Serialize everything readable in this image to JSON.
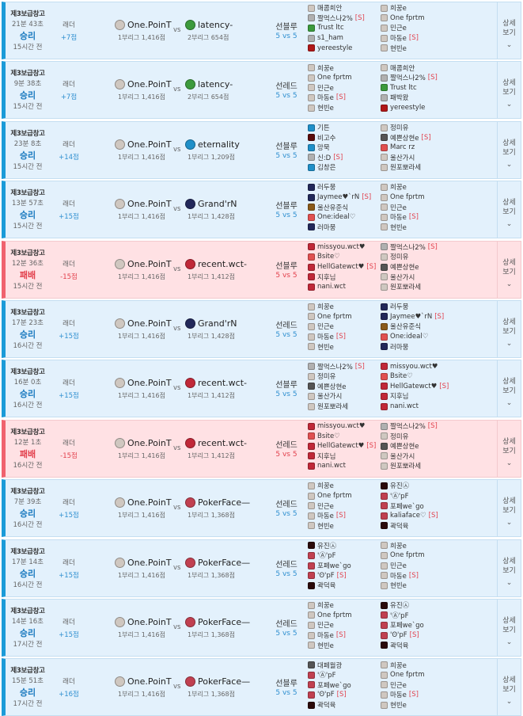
{
  "labels": {
    "ladder": "래더",
    "vs": "vs",
    "details": "상세\n보기",
    "chevron": "⌄",
    "s_tag": "[S]"
  },
  "icon_colors": {
    "pointer": "#cfc7c0",
    "grey": "#b0b0b0",
    "green": "#3c9a3c",
    "redshield": "#b01818",
    "blue": "#1f8fc8",
    "darkred": "#5a0a0a",
    "navy": "#22285a",
    "brown": "#8a5a1a",
    "wct": "#c02838",
    "pink": "#e05050",
    "poker": "#c04050",
    "black": "#2a0a0a",
    "dark": "#555"
  },
  "matches": [
    {
      "mode": "제3보급창고",
      "duration": "21분 43초",
      "result": "승리",
      "win": true,
      "ago": "15시간 전",
      "points": "+7점",
      "team1": {
        "name": "One.PoinT",
        "sub": "1부리그 1,416점",
        "icon": "pointer"
      },
      "team2": {
        "name": "latency-",
        "sub": "2부리그 654점",
        "icon": "green"
      },
      "side": "선블루",
      "count": "5 vs 5",
      "blue": [
        {
          "n": "매콤희안",
          "i": "pointer"
        },
        {
          "n": "짤먹스나2%",
          "i": "grey",
          "s": true
        },
        {
          "n": "Trust ltc",
          "i": "green"
        },
        {
          "n": "s1_ham",
          "i": "grey"
        },
        {
          "n": "yereestyle",
          "i": "redshield"
        }
      ],
      "red": [
        {
          "n": "희꿍e",
          "i": "pointer"
        },
        {
          "n": "One fprtm",
          "i": "pointer"
        },
        {
          "n": "민근e",
          "i": "pointer"
        },
        {
          "n": "마동e",
          "i": "pointer",
          "s": true
        },
        {
          "n": "현빈e",
          "i": "pointer"
        }
      ]
    },
    {
      "mode": "제3보급창고",
      "duration": "9분 38초",
      "result": "승리",
      "win": true,
      "ago": "15시간 전",
      "points": "+7점",
      "team1": {
        "name": "One.PoinT",
        "sub": "1부리그 1,416점",
        "icon": "pointer"
      },
      "team2": {
        "name": "latency-",
        "sub": "2부리그 654점",
        "icon": "green"
      },
      "side": "선레드",
      "count": "5 vs 5",
      "blue": [
        {
          "n": "희꿍e",
          "i": "pointer"
        },
        {
          "n": "One fprtm",
          "i": "pointer"
        },
        {
          "n": "민근e",
          "i": "pointer"
        },
        {
          "n": "마동e",
          "i": "pointer",
          "s": true
        },
        {
          "n": "현빈e",
          "i": "pointer"
        }
      ],
      "red": [
        {
          "n": "매콤희안",
          "i": "pointer"
        },
        {
          "n": "짤먹스나2%",
          "i": "grey",
          "s": true
        },
        {
          "n": "Trust ltc",
          "i": "green"
        },
        {
          "n": "패박왔",
          "i": "grey"
        },
        {
          "n": "yereestyle",
          "i": "redshield"
        }
      ]
    },
    {
      "mode": "제3보급창고",
      "duration": "23분 8초",
      "result": "승리",
      "win": true,
      "ago": "15시간 전",
      "points": "+14점",
      "team1": {
        "name": "One.PoinT",
        "sub": "1부리그 1,416점",
        "icon": "pointer"
      },
      "team2": {
        "name": "eternality",
        "sub": "1부리그 1,209점",
        "icon": "blue"
      },
      "side": "선블루",
      "count": "5 vs 5",
      "blue": [
        {
          "n": "기튼",
          "i": "blue"
        },
        {
          "n": "비고수",
          "i": "darkred"
        },
        {
          "n": "망묵",
          "i": "blue"
        },
        {
          "n": "신:D",
          "i": "grey",
          "s": true
        },
        {
          "n": "김창은",
          "i": "blue"
        }
      ],
      "red": [
        {
          "n": "정미유",
          "i": "pointer"
        },
        {
          "n": "예쁜상현e",
          "i": "dark",
          "s": true
        },
        {
          "n": "Marc rz",
          "i": "pink"
        },
        {
          "n": "울산가시",
          "i": "pointer"
        },
        {
          "n": "원포뽀라세",
          "i": "pointer"
        }
      ]
    },
    {
      "mode": "제3보급창고",
      "duration": "13분 57초",
      "result": "승리",
      "win": true,
      "ago": "15시간 전",
      "points": "+15점",
      "team1": {
        "name": "One.PoinT",
        "sub": "1부리그 1,416점",
        "icon": "pointer"
      },
      "team2": {
        "name": "Grand'rN",
        "sub": "1부리그 1,428점",
        "icon": "navy"
      },
      "side": "선블루",
      "count": "5 vs 5",
      "blue": [
        {
          "n": "러두뭉",
          "i": "navy"
        },
        {
          "n": "Jaymee♥`rN",
          "i": "navy",
          "s": true
        },
        {
          "n": "울산유준식",
          "i": "brown"
        },
        {
          "n": "One:ideal♡",
          "i": "pink"
        },
        {
          "n": "러마뭉",
          "i": "navy"
        }
      ],
      "red": [
        {
          "n": "희꿍e",
          "i": "pointer"
        },
        {
          "n": "One fprtm",
          "i": "pointer"
        },
        {
          "n": "민근e",
          "i": "pointer"
        },
        {
          "n": "마동e",
          "i": "pointer",
          "s": true
        },
        {
          "n": "현빈e",
          "i": "pointer"
        }
      ]
    },
    {
      "mode": "제3보급창고",
      "duration": "12분 36초",
      "result": "패배",
      "win": false,
      "ago": "15시간 전",
      "points": "-15점",
      "team1": {
        "name": "One.PoinT",
        "sub": "1부리그 1,416점",
        "icon": "pointer"
      },
      "team2": {
        "name": "recent.wct-",
        "sub": "1부리그 1,412점",
        "icon": "wct"
      },
      "side": "선블루",
      "count": "5 vs 5",
      "blue": [
        {
          "n": "missyou.wct♥",
          "i": "wct"
        },
        {
          "n": "Bsite♡",
          "i": "pink"
        },
        {
          "n": "HellGatewct♥",
          "i": "wct",
          "s": true
        },
        {
          "n": "지후님",
          "i": "wct"
        },
        {
          "n": "nani.wct",
          "i": "wct"
        }
      ],
      "red": [
        {
          "n": "짤먹스나2%",
          "i": "grey",
          "s": true
        },
        {
          "n": "정미유",
          "i": "pointer"
        },
        {
          "n": "예쁜상현e",
          "i": "dark"
        },
        {
          "n": "울산가시",
          "i": "pointer"
        },
        {
          "n": "원포뽀라세",
          "i": "pointer"
        }
      ]
    },
    {
      "mode": "제3보급창고",
      "duration": "17분 23초",
      "result": "승리",
      "win": true,
      "ago": "16시간 전",
      "points": "+15점",
      "team1": {
        "name": "One.PoinT",
        "sub": "1부리그 1,416점",
        "icon": "pointer"
      },
      "team2": {
        "name": "Grand'rN",
        "sub": "1부리그 1,428점",
        "icon": "navy"
      },
      "side": "선레드",
      "count": "5 vs 5",
      "blue": [
        {
          "n": "희꿍e",
          "i": "pointer"
        },
        {
          "n": "One fprtm",
          "i": "pointer"
        },
        {
          "n": "민근e",
          "i": "pointer"
        },
        {
          "n": "마동e",
          "i": "pointer",
          "s": true
        },
        {
          "n": "현빈e",
          "i": "pointer"
        }
      ],
      "red": [
        {
          "n": "러두뭉",
          "i": "navy"
        },
        {
          "n": "Jaymee♥`rN",
          "i": "navy",
          "s": true
        },
        {
          "n": "울산유준식",
          "i": "brown"
        },
        {
          "n": "One:ideal♡",
          "i": "pink"
        },
        {
          "n": "러마뭉",
          "i": "navy"
        }
      ]
    },
    {
      "mode": "제3보급창고",
      "duration": "16분 0초",
      "result": "승리",
      "win": true,
      "ago": "16시간 전",
      "points": "+15점",
      "team1": {
        "name": "One.PoinT",
        "sub": "1부리그 1,416점",
        "icon": "pointer"
      },
      "team2": {
        "name": "recent.wct-",
        "sub": "1부리그 1,412점",
        "icon": "wct"
      },
      "side": "선블루",
      "count": "5 vs 5",
      "blue": [
        {
          "n": "짤먹스나2%",
          "i": "grey",
          "s": true
        },
        {
          "n": "정미유",
          "i": "pointer"
        },
        {
          "n": "예쁜상현e",
          "i": "dark"
        },
        {
          "n": "울산가시",
          "i": "pointer"
        },
        {
          "n": "원포뽀라세",
          "i": "pointer"
        }
      ],
      "red": [
        {
          "n": "missyou.wct♥",
          "i": "wct"
        },
        {
          "n": "Bsite♡",
          "i": "pink"
        },
        {
          "n": "HellGatewct♥",
          "i": "wct",
          "s": true
        },
        {
          "n": "지후님",
          "i": "wct"
        },
        {
          "n": "nani.wct",
          "i": "wct"
        }
      ]
    },
    {
      "mode": "제3보급창고",
      "duration": "12분 1초",
      "result": "패배",
      "win": false,
      "ago": "16시간 전",
      "points": "-15점",
      "team1": {
        "name": "One.PoinT",
        "sub": "1부리그 1,416점",
        "icon": "pointer"
      },
      "team2": {
        "name": "recent.wct-",
        "sub": "1부리그 1,412점",
        "icon": "wct"
      },
      "side": "선레드",
      "count": "5 vs 5",
      "blue": [
        {
          "n": "missyou.wct♥",
          "i": "wct"
        },
        {
          "n": "Bsite♡",
          "i": "pink"
        },
        {
          "n": "HellGatewct♥",
          "i": "wct",
          "s": true
        },
        {
          "n": "지후님",
          "i": "wct"
        },
        {
          "n": "nani.wct",
          "i": "wct"
        }
      ],
      "red": [
        {
          "n": "짤먹스나2%",
          "i": "grey",
          "s": true
        },
        {
          "n": "정미유",
          "i": "pointer"
        },
        {
          "n": "예쁜상현e",
          "i": "dark"
        },
        {
          "n": "울산가시",
          "i": "pointer"
        },
        {
          "n": "원포뽀라세",
          "i": "pointer"
        }
      ]
    },
    {
      "mode": "제3보급창고",
      "duration": "7분 39초",
      "result": "승리",
      "win": true,
      "ago": "16시간 전",
      "points": "+15점",
      "team1": {
        "name": "One.PoinT",
        "sub": "1부리그 1,416점",
        "icon": "pointer"
      },
      "team2": {
        "name": "PokerFace—",
        "sub": "1부리그 1,368점",
        "icon": "poker"
      },
      "side": "선레드",
      "count": "5 vs 5",
      "blue": [
        {
          "n": "희꿍e",
          "i": "pointer"
        },
        {
          "n": "One fprtm",
          "i": "pointer"
        },
        {
          "n": "민근e",
          "i": "pointer"
        },
        {
          "n": "마동e",
          "i": "pointer",
          "s": true
        },
        {
          "n": "현빈e",
          "i": "pointer"
        }
      ],
      "red": [
        {
          "n": "유진㉦",
          "i": "black"
        },
        {
          "n": "'Ⓐ'pF",
          "i": "poker"
        },
        {
          "n": "포페we`go",
          "i": "poker"
        },
        {
          "n": "kaliaface♡",
          "i": "poker",
          "s": true
        },
        {
          "n": "곽덕육",
          "i": "black"
        }
      ]
    },
    {
      "mode": "제3보급창고",
      "duration": "17분 14초",
      "result": "승리",
      "win": true,
      "ago": "16시간 전",
      "points": "+15점",
      "team1": {
        "name": "One.PoinT",
        "sub": "1부리그 1,416점",
        "icon": "pointer"
      },
      "team2": {
        "name": "PokerFace—",
        "sub": "1부리그 1,368점",
        "icon": "poker"
      },
      "side": "선레드",
      "count": "5 vs 5",
      "blue": [
        {
          "n": "유진㉦",
          "i": "black"
        },
        {
          "n": "'Ⓐ'pF",
          "i": "poker"
        },
        {
          "n": "포페we`go",
          "i": "poker"
        },
        {
          "n": "'ʘ'pF",
          "i": "poker",
          "s": true
        },
        {
          "n": "곽덕육",
          "i": "black"
        }
      ],
      "red": [
        {
          "n": "희꿍e",
          "i": "pointer"
        },
        {
          "n": "One fprtm",
          "i": "pointer"
        },
        {
          "n": "민근e",
          "i": "pointer"
        },
        {
          "n": "마동e",
          "i": "pointer",
          "s": true
        },
        {
          "n": "현빈e",
          "i": "pointer"
        }
      ]
    },
    {
      "mode": "제3보급창고",
      "duration": "14분 16초",
      "result": "승리",
      "win": true,
      "ago": "17시간 전",
      "points": "+15점",
      "team1": {
        "name": "One.PoinT",
        "sub": "1부리그 1,416점",
        "icon": "pointer"
      },
      "team2": {
        "name": "PokerFace—",
        "sub": "1부리그 1,368점",
        "icon": "poker"
      },
      "side": "선레드",
      "count": "5 vs 5",
      "blue": [
        {
          "n": "희꿍e",
          "i": "pointer"
        },
        {
          "n": "One fprtm",
          "i": "pointer"
        },
        {
          "n": "민근e",
          "i": "pointer"
        },
        {
          "n": "마동e",
          "i": "pointer",
          "s": true
        },
        {
          "n": "현빈e",
          "i": "pointer"
        }
      ],
      "red": [
        {
          "n": "유진㉦",
          "i": "black"
        },
        {
          "n": "'Ⓐ'pF",
          "i": "poker"
        },
        {
          "n": "포페we`go",
          "i": "poker"
        },
        {
          "n": "'ʘ'pF",
          "i": "poker",
          "s": true
        },
        {
          "n": "곽덕육",
          "i": "black"
        }
      ]
    },
    {
      "mode": "제3보급창고",
      "duration": "15분 51초",
      "result": "승리",
      "win": true,
      "ago": "17시간 전",
      "points": "+16점",
      "team1": {
        "name": "One.PoinT",
        "sub": "1부리그 1,416점",
        "icon": "pointer"
      },
      "team2": {
        "name": "PokerFace—",
        "sub": "1부리그 1,368점",
        "icon": "poker"
      },
      "side": "선블루",
      "count": "5 vs 5",
      "blue": [
        {
          "n": "대페월광",
          "i": "dark"
        },
        {
          "n": "'Ⓐ'pF",
          "i": "poker"
        },
        {
          "n": "포페we`go",
          "i": "poker"
        },
        {
          "n": "'ʘ'pF",
          "i": "poker",
          "s": true
        },
        {
          "n": "곽덕육",
          "i": "black"
        }
      ],
      "red": [
        {
          "n": "희꿍e",
          "i": "pointer"
        },
        {
          "n": "One fprtm",
          "i": "pointer"
        },
        {
          "n": "민근e",
          "i": "pointer"
        },
        {
          "n": "마동e",
          "i": "pointer",
          "s": true
        },
        {
          "n": "현빈e",
          "i": "pointer"
        }
      ]
    }
  ]
}
